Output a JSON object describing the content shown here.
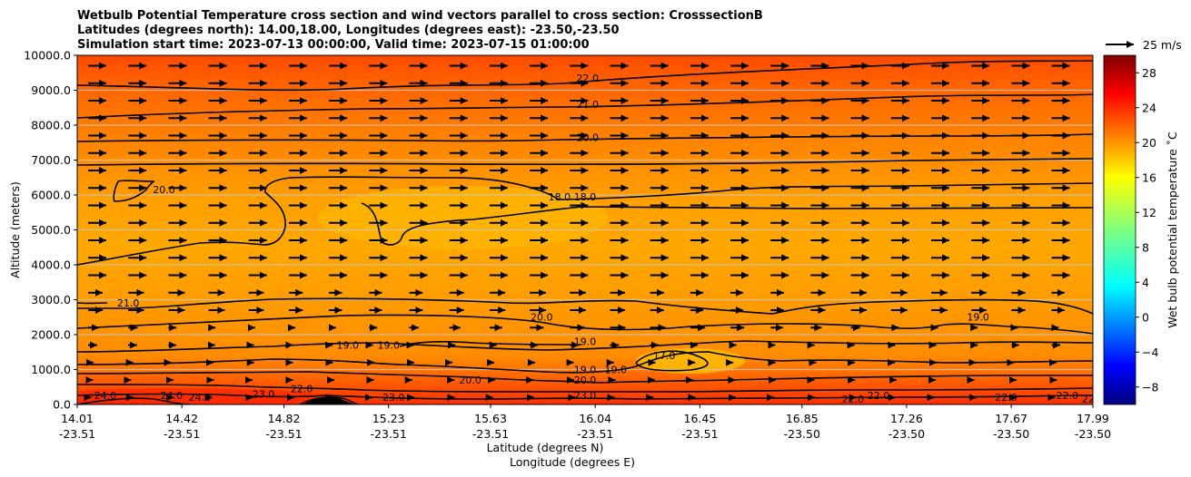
{
  "chart_data": {
    "type": "contour",
    "title_lines": [
      "Wetbulb Potential Temperature cross section and wind vectors parallel to cross section: CrosssectionB",
      "Latitudes (degrees north): 14.00,18.00, Longitudes (degrees east): -23.50,-23.50",
      "Simulation start time: 2023-07-13 00:00:00, Valid time: 2023-07-15 01:00:00"
    ],
    "ylabel": "Altitude (meters)",
    "xlabel_lat": "Latitude (degrees N)",
    "xlabel_lon": "Longitude (degrees E)",
    "ylim": [
      0,
      10000
    ],
    "y_ticks": [
      "0.0",
      "1000.0",
      "2000.0",
      "3000.0",
      "4000.0",
      "5000.0",
      "6000.0",
      "7000.0",
      "8000.0",
      "9000.0",
      "10000.0"
    ],
    "x_ticks": [
      {
        "lat": "14.01",
        "lon": "-23.51"
      },
      {
        "lat": "14.42",
        "lon": "-23.51"
      },
      {
        "lat": "14.82",
        "lon": "-23.51"
      },
      {
        "lat": "15.23",
        "lon": "-23.51"
      },
      {
        "lat": "15.63",
        "lon": "-23.51"
      },
      {
        "lat": "16.04",
        "lon": "-23.51"
      },
      {
        "lat": "16.45",
        "lon": "-23.51"
      },
      {
        "lat": "16.85",
        "lon": "-23.50"
      },
      {
        "lat": "17.26",
        "lon": "-23.50"
      },
      {
        "lat": "17.67",
        "lon": "-23.50"
      },
      {
        "lat": "17.99",
        "lon": "-23.50"
      }
    ],
    "x_range": [
      14.01,
      17.99
    ],
    "contour_levels": [
      17,
      18,
      19,
      20,
      21,
      22,
      23,
      24
    ],
    "contour_labels": [
      {
        "text": "22.0",
        "x": 16.01,
        "y": 9250
      },
      {
        "text": "21.0",
        "x": 16.01,
        "y": 8500
      },
      {
        "text": "20.0",
        "x": 16.01,
        "y": 7550
      },
      {
        "text": "18.0",
        "x": 15.9,
        "y": 5850
      },
      {
        "text": "18.0",
        "x": 16.0,
        "y": 5850
      },
      {
        "text": "20.0",
        "x": 14.35,
        "y": 6050
      },
      {
        "text": "21.0",
        "x": 14.21,
        "y": 2800
      },
      {
        "text": "20.0",
        "x": 15.83,
        "y": 2400
      },
      {
        "text": "19.0",
        "x": 15.07,
        "y": 1600
      },
      {
        "text": "19.0",
        "x": 15.23,
        "y": 1600
      },
      {
        "text": "19.0",
        "x": 16.0,
        "y": 1700
      },
      {
        "text": "19.0",
        "x": 16.0,
        "y": 900
      },
      {
        "text": "19.0",
        "x": 16.12,
        "y": 900
      },
      {
        "text": "20.0",
        "x": 16.0,
        "y": 600
      },
      {
        "text": "20.0",
        "x": 15.55,
        "y": 600
      },
      {
        "text": "17.0",
        "x": 16.31,
        "y": 1300
      },
      {
        "text": "23.0",
        "x": 16.0,
        "y": 150
      },
      {
        "text": "23.0",
        "x": 15.25,
        "y": 100
      },
      {
        "text": "23.0",
        "x": 14.74,
        "y": 200
      },
      {
        "text": "22.0",
        "x": 14.89,
        "y": 350
      },
      {
        "text": "24.0",
        "x": 14.12,
        "y": 150
      },
      {
        "text": "24.0",
        "x": 14.38,
        "y": 150
      },
      {
        "text": "24.0",
        "x": 14.49,
        "y": 100
      },
      {
        "text": "22.0",
        "x": 17.05,
        "y": 50
      },
      {
        "text": "22.0",
        "x": 17.15,
        "y": 150
      },
      {
        "text": "22.0",
        "x": 17.65,
        "y": 100
      },
      {
        "text": "22.0",
        "x": 17.89,
        "y": 150
      },
      {
        "text": "22.0",
        "x": 17.99,
        "y": 50
      },
      {
        "text": "19.0",
        "x": 17.54,
        "y": 2400
      }
    ],
    "wind_vectors": {
      "reference_label": "25 m/s",
      "reference_speed": 25,
      "direction": "parallel to cross section, predominantly toward higher latitude"
    },
    "colorbar": {
      "label": "Wet bulb potential temperature ˚C",
      "ticks": [
        "−8",
        "−4",
        "0",
        "4",
        "8",
        "12",
        "16",
        "20",
        "24",
        "28"
      ],
      "range": [
        -10,
        30
      ],
      "colormap": "jet"
    }
  }
}
